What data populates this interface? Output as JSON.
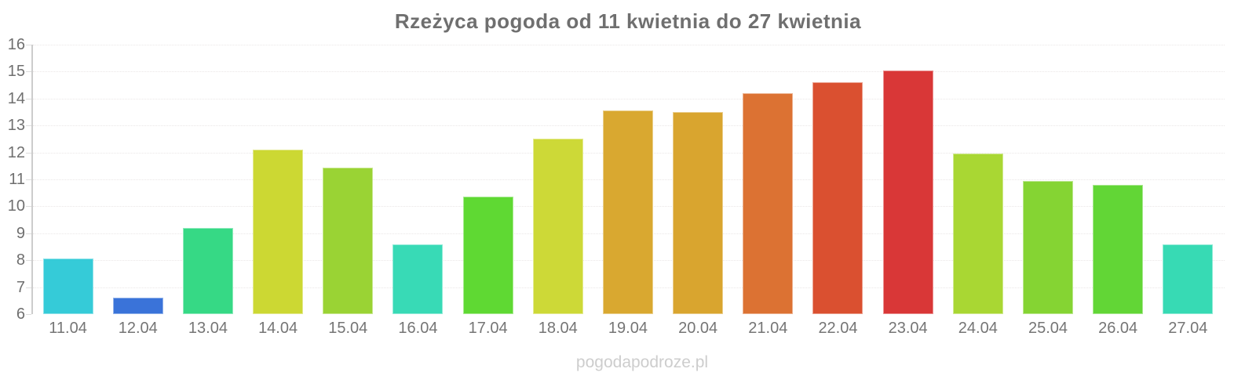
{
  "title": "Rzeżyca pogoda od 11 kwietnia do 27 kwietnia",
  "watermark": "pogodapodroze.pl",
  "chart_data": {
    "type": "bar",
    "title": "Rzeżyca pogoda od 11 kwietnia do 27 kwietnia",
    "categories": [
      "11.04",
      "12.04",
      "13.04",
      "14.04",
      "15.04",
      "16.04",
      "17.04",
      "18.04",
      "19.04",
      "20.04",
      "21.04",
      "22.04",
      "23.04",
      "24.04",
      "25.04",
      "26.04",
      "27.04"
    ],
    "values": [
      8.05,
      6.6,
      9.2,
      12.1,
      11.45,
      8.6,
      10.35,
      12.5,
      13.55,
      13.5,
      14.2,
      14.6,
      15.05,
      11.95,
      10.95,
      10.8,
      8.6
    ],
    "bar_colors": [
      "#35cbd8",
      "#3a73d9",
      "#36d985",
      "#ccd833",
      "#9ad334",
      "#38dab6",
      "#5fd933",
      "#cdd937",
      "#d9a830",
      "#d9a52f",
      "#dc7233",
      "#da5030",
      "#d93737",
      "#a9d733",
      "#85d433",
      "#62d636",
      "#37dab4"
    ],
    "xlabel": "",
    "ylabel": "",
    "ylim": [
      6,
      16
    ],
    "yticks": [
      16,
      15,
      14,
      13,
      12,
      11,
      10,
      9,
      8,
      7,
      6
    ],
    "grid": "horizontal-dotted",
    "legend": "none",
    "axis_line_color": "#cccccc",
    "label_color": "#6f6f6f"
  }
}
